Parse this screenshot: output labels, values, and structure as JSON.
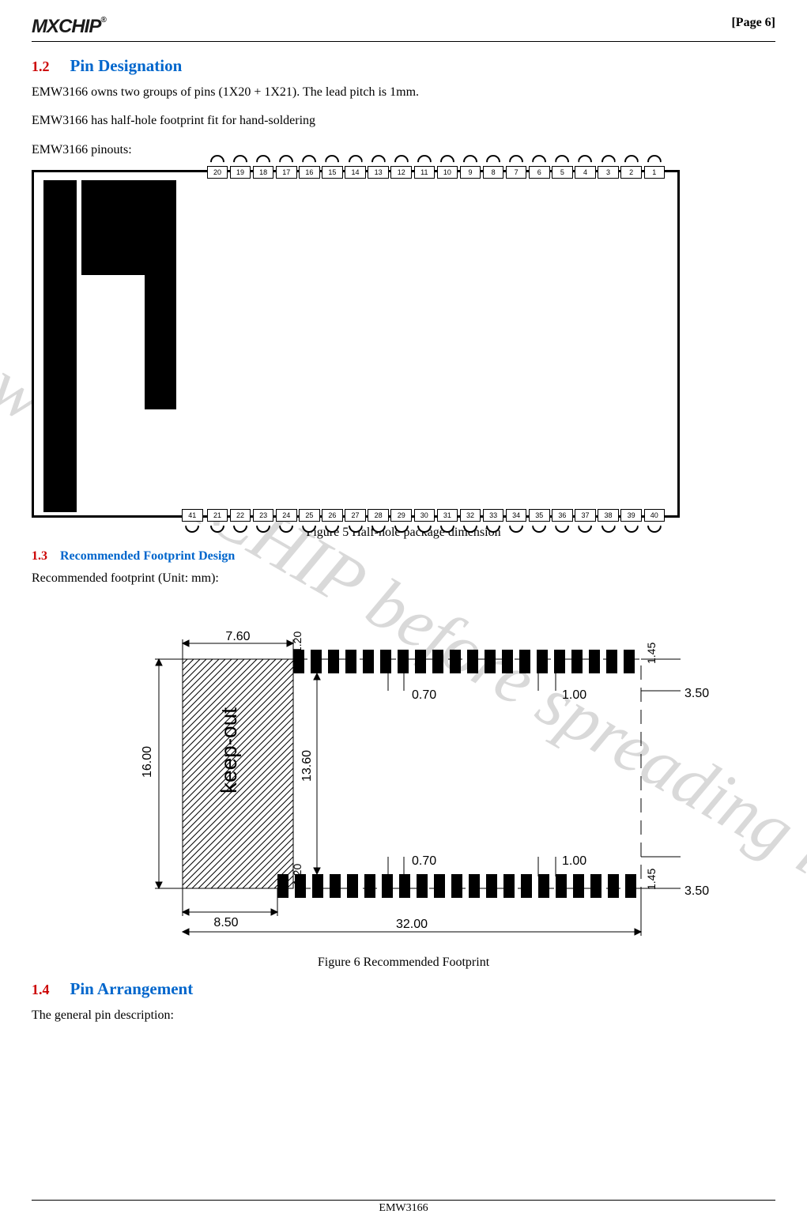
{
  "header": {
    "logo_text": "MXCHIP",
    "logo_reg": "®",
    "page_label": "[Page  6]"
  },
  "watermark": "review by MXCHIP before spreading it out",
  "section12": {
    "num": "1.2",
    "title": "Pin Designation",
    "p1": "EMW3166 owns two groups of pins (1X20 + 1X21). The lead pitch is 1mm.",
    "p2": "EMW3166 has half-hole footprint fit for hand-soldering",
    "p3": "EMW3166 pinouts:"
  },
  "figure5": {
    "caption": "Figure 5 Half-hole package dimension",
    "top_pins": [
      "1",
      "2",
      "3",
      "4",
      "5",
      "6",
      "7",
      "8",
      "9",
      "10",
      "11",
      "12",
      "13",
      "14",
      "15",
      "16",
      "17",
      "18",
      "19",
      "20"
    ],
    "bottom_pins_extra": "41",
    "bottom_pins": [
      "21",
      "22",
      "23",
      "24",
      "25",
      "26",
      "27",
      "28",
      "29",
      "30",
      "31",
      "32",
      "33",
      "34",
      "35",
      "36",
      "37",
      "38",
      "39",
      "40"
    ]
  },
  "section13": {
    "num": "1.3",
    "title": "Recommended Footprint Design",
    "p1": "Recommended footprint (Unit: mm):"
  },
  "figure6": {
    "caption": "Figure 6 Recommended Footprint",
    "dims": {
      "top_left_w": "7.60",
      "top_bar_h": "1.20",
      "pad_pitch_top": "0.70",
      "pad_w_top": "1.00",
      "right_ext_top": "3.50",
      "right_pad_h_top": "1.45",
      "keepout_h": "16.00",
      "keepout_label": "keep-out",
      "inner_h": "13.60",
      "bot_bar_h": "1.20",
      "pad_pitch_bot": "0.70",
      "pad_w_bot": "1.00",
      "right_ext_bot": "3.50",
      "right_pad_h_bot": "1.45",
      "bot_left_w": "8.50",
      "total_w": "32.00"
    },
    "top_pad_count": 20,
    "bottom_pad_count": 21
  },
  "section14": {
    "num": "1.4",
    "title": "Pin Arrangement",
    "p1": "The general pin description:"
  },
  "footer": {
    "text": "EMW3166"
  }
}
